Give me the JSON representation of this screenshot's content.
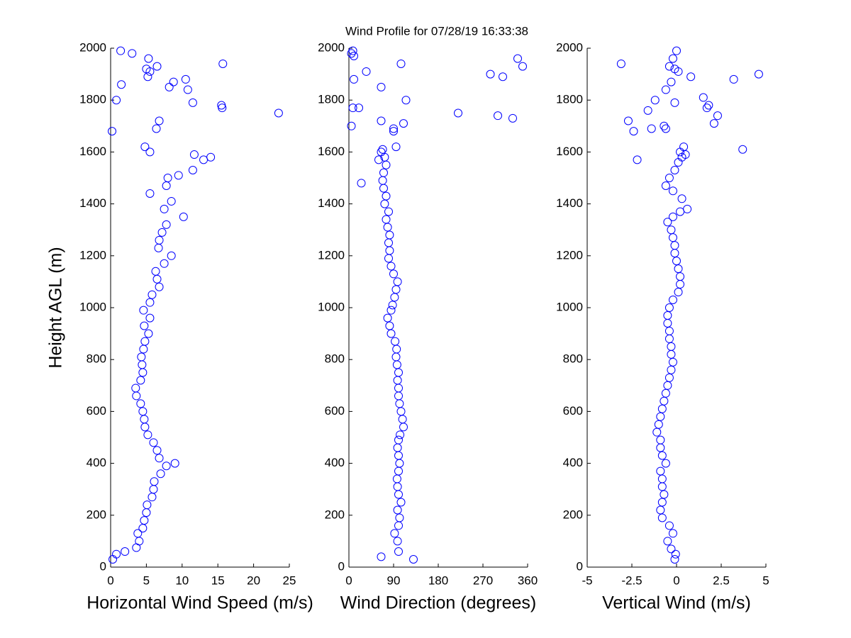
{
  "title": "Wind Profile for  07/28/19 16:33:38",
  "chart_data": [
    {
      "type": "scatter",
      "color": "#0000ff",
      "xlabel": "Horizontal Wind Speed (m/s)",
      "ylabel": "Height AGL (m)",
      "xlim": [
        0,
        25
      ],
      "xticks": [
        0,
        5,
        10,
        15,
        20,
        25
      ],
      "ylim": [
        0,
        2000
      ],
      "yticks": [
        0,
        200,
        400,
        600,
        800,
        1000,
        1200,
        1400,
        1600,
        1800,
        2000
      ],
      "x": [
        0.3,
        0.8,
        2,
        3.6,
        4,
        3.8,
        4.5,
        4.7,
        5,
        5.1,
        5.8,
        6,
        6.1,
        7,
        7.8,
        9,
        6.8,
        6.5,
        6,
        5.2,
        4.8,
        4.7,
        4.5,
        4.2,
        3.6,
        3.5,
        4.2,
        4.5,
        4.4,
        4.3,
        4.6,
        4.8,
        5.3,
        4.7,
        5.5,
        4.6,
        5.5,
        5.8,
        6.8,
        6.5,
        6.3,
        7.5,
        8.5,
        6.7,
        6.8,
        7.2,
        7.8,
        10.2,
        7.5,
        8.5,
        5.5,
        7.8,
        8,
        9.5,
        11.5,
        13,
        11.7,
        14,
        4.8,
        5.5,
        0.2,
        6.4,
        6.8,
        23.5,
        15.6,
        15.5,
        11.5,
        0.8,
        10.8,
        8.2,
        1.5,
        10.5,
        8.8,
        5.2,
        5.5,
        6.5,
        5,
        15.7,
        5.3,
        3,
        1.4
      ],
      "y": [
        30,
        50,
        60,
        75,
        100,
        130,
        150,
        180,
        210,
        240,
        270,
        300,
        330,
        360,
        390,
        400,
        420,
        450,
        480,
        510,
        540,
        570,
        600,
        630,
        660,
        690,
        720,
        750,
        780,
        810,
        840,
        870,
        900,
        930,
        960,
        990,
        1020,
        1050,
        1080,
        1110,
        1140,
        1170,
        1200,
        1230,
        1260,
        1290,
        1320,
        1350,
        1380,
        1410,
        1440,
        1470,
        1500,
        1510,
        1530,
        1570,
        1590,
        1580,
        1620,
        1600,
        1680,
        1690,
        1720,
        1750,
        1770,
        1780,
        1790,
        1800,
        1840,
        1850,
        1860,
        1880,
        1870,
        1890,
        1910,
        1930,
        1920,
        1940,
        1960,
        1980,
        1990
      ]
    },
    {
      "type": "scatter",
      "color": "#0000ff",
      "xlabel": "Wind Direction (degrees)",
      "xlim": [
        0,
        360
      ],
      "xticks": [
        0,
        90,
        180,
        270,
        360
      ],
      "ylim": [
        0,
        2000
      ],
      "yticks": [
        0,
        200,
        400,
        600,
        800,
        1000,
        1200,
        1400,
        1600,
        1800,
        2000
      ],
      "x": [
        130,
        65,
        100,
        98,
        92,
        100,
        102,
        98,
        105,
        100,
        98,
        97,
        100,
        102,
        100,
        98,
        100,
        103,
        110,
        108,
        105,
        102,
        100,
        100,
        98,
        100,
        97,
        95,
        96,
        93,
        85,
        82,
        78,
        85,
        88,
        92,
        95,
        98,
        90,
        85,
        80,
        82,
        80,
        82,
        78,
        75,
        80,
        72,
        75,
        70,
        68,
        70,
        75,
        72,
        65,
        60,
        68,
        90,
        95,
        25,
        65,
        90,
        110,
        220,
        300,
        330,
        5,
        115,
        8,
        65,
        20,
        10,
        285,
        310,
        35,
        350,
        10,
        105,
        5,
        340,
        8
      ],
      "y": [
        30,
        40,
        60,
        100,
        130,
        160,
        190,
        220,
        250,
        280,
        310,
        340,
        370,
        400,
        430,
        460,
        490,
        510,
        540,
        570,
        600,
        630,
        660,
        690,
        720,
        750,
        780,
        810,
        840,
        870,
        900,
        930,
        960,
        990,
        1010,
        1040,
        1070,
        1100,
        1130,
        1160,
        1190,
        1220,
        1250,
        1280,
        1310,
        1340,
        1370,
        1400,
        1430,
        1460,
        1490,
        1520,
        1550,
        1580,
        1600,
        1570,
        1610,
        1680,
        1620,
        1480,
        1720,
        1690,
        1710,
        1750,
        1740,
        1730,
        1700,
        1800,
        1770,
        1850,
        1770,
        1880,
        1900,
        1890,
        1910,
        1930,
        1970,
        1940,
        1980,
        1960,
        1990
      ]
    },
    {
      "type": "scatter",
      "color": "#0000ff",
      "xlabel": "Vertical Wind (m/s)",
      "xlim": [
        -5,
        5
      ],
      "xticks": [
        -5,
        -2.5,
        0,
        2.5,
        5
      ],
      "ylim": [
        0,
        2000
      ],
      "yticks": [
        0,
        200,
        400,
        600,
        800,
        1000,
        1200,
        1400,
        1600,
        1800,
        2000
      ],
      "x": [
        -0.1,
        -0.05,
        -0.3,
        -0.5,
        -0.2,
        -0.4,
        -0.8,
        -0.9,
        -0.8,
        -0.7,
        -0.8,
        -0.8,
        -0.9,
        -0.6,
        -0.8,
        -0.9,
        -0.9,
        -1.1,
        -1,
        -0.9,
        -0.8,
        -0.7,
        -0.6,
        -0.5,
        -0.4,
        -0.3,
        -0.2,
        -0.3,
        -0.3,
        -0.4,
        -0.4,
        -0.5,
        -0.5,
        -0.4,
        -0.2,
        0.1,
        0.2,
        0.2,
        0.1,
        0,
        -0.1,
        -0.1,
        -0.2,
        -0.3,
        -0.5,
        -0.2,
        0.2,
        0.6,
        0.3,
        -0.2,
        -0.6,
        -0.4,
        -0.1,
        0.1,
        0.3,
        0.5,
        0.4,
        -2.2,
        0.2,
        3.7,
        -0.6,
        -2.7,
        -1.4,
        2.3,
        2.1,
        -0.7,
        -1.6,
        -2.4,
        1.5,
        1.8,
        -0.1,
        -1.2,
        1.7,
        -0.6,
        0.8,
        3.2,
        -0.3,
        4.6,
        0.1,
        -0.4,
        -3.1,
        -0.2,
        0,
        -0.1
      ],
      "y": [
        30,
        50,
        70,
        100,
        130,
        160,
        190,
        220,
        250,
        280,
        310,
        340,
        370,
        400,
        430,
        460,
        490,
        520,
        550,
        580,
        610,
        640,
        670,
        700,
        730,
        760,
        790,
        820,
        850,
        880,
        910,
        940,
        970,
        1000,
        1030,
        1060,
        1090,
        1120,
        1150,
        1180,
        1210,
        1240,
        1270,
        1300,
        1330,
        1350,
        1370,
        1380,
        1420,
        1450,
        1470,
        1500,
        1530,
        1560,
        1580,
        1590,
        1620,
        1570,
        1600,
        1610,
        1690,
        1720,
        1690,
        1740,
        1710,
        1700,
        1760,
        1680,
        1810,
        1780,
        1790,
        1800,
        1770,
        1840,
        1890,
        1880,
        1870,
        1900,
        1910,
        1930,
        1940,
        1960,
        1990,
        1920
      ]
    }
  ]
}
